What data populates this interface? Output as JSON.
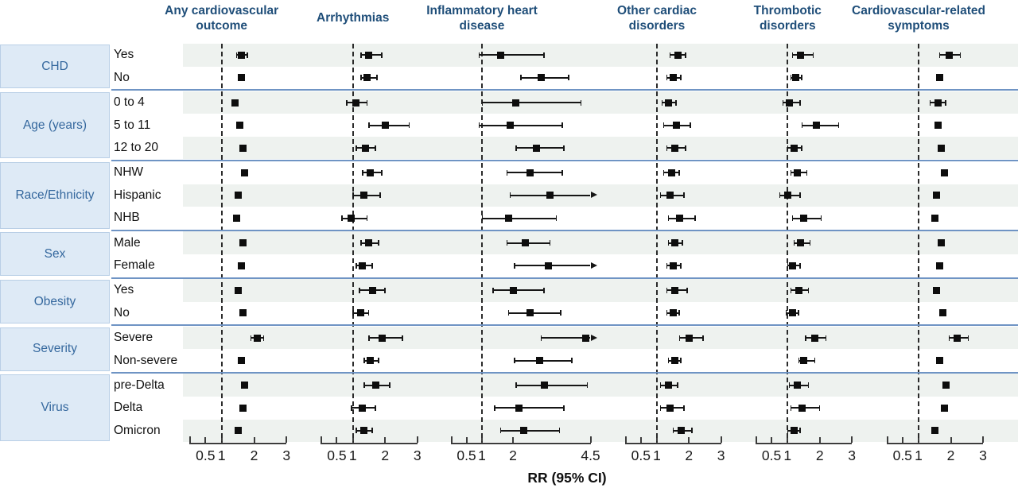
{
  "chart_data": {
    "type": "forest",
    "xlabel": "RR (95% CI)",
    "note": "Forest plot of risk ratios (RR, 95% CI); dashed reference line at RR = 1; estimates are [rr, lower, upper, optional '>' = CI clipped with right arrow]. Estimate order per row matches columns order.",
    "columns": [
      {
        "label": "Any cardiovascular outcome",
        "ticks": [
          0.5,
          1,
          2,
          3
        ],
        "tick_labels": [
          "0.5",
          "1",
          "2",
          "3"
        ]
      },
      {
        "label": "Arrhythmias",
        "ticks": [
          0.5,
          1,
          2,
          3
        ],
        "tick_labels": [
          "0.5",
          "1",
          "2",
          "3"
        ]
      },
      {
        "label": "Inflammatory heart disease",
        "ticks": [
          0.5,
          1,
          2,
          4.5
        ],
        "tick_labels": [
          "0.5",
          "1",
          "2",
          "4.5"
        ]
      },
      {
        "label": "Other cardiac disorders",
        "ticks": [
          0.5,
          1,
          2,
          3
        ],
        "tick_labels": [
          "0.5",
          "1",
          "2",
          "3"
        ]
      },
      {
        "label": "Thrombotic disorders",
        "ticks": [
          0.5,
          1,
          2,
          3
        ],
        "tick_labels": [
          "0.5",
          "1",
          "2",
          "3"
        ]
      },
      {
        "label": "Cardiovascular-related symptoms",
        "ticks": [
          0.5,
          1,
          2,
          3
        ],
        "tick_labels": [
          "0.5",
          "1",
          "2",
          "3"
        ]
      }
    ],
    "groups": [
      {
        "label": "CHD",
        "rows": [
          {
            "label": "Yes",
            "estimates": [
              [
                1.6,
                1.45,
                1.8
              ],
              [
                1.5,
                1.25,
                1.9
              ],
              [
                1.6,
                0.9,
                3.0
              ],
              [
                1.65,
                1.4,
                1.9
              ],
              [
                1.4,
                1.15,
                1.8
              ],
              [
                1.95,
                1.65,
                2.3
              ]
            ]
          },
          {
            "label": "No",
            "estimates": [
              [
                1.6,
                1.5,
                1.7
              ],
              [
                1.45,
                1.25,
                1.75
              ],
              [
                2.9,
                2.25,
                3.8
              ],
              [
                1.5,
                1.3,
                1.75
              ],
              [
                1.25,
                1.1,
                1.45
              ],
              [
                1.65,
                1.6,
                1.75
              ]
            ]
          }
        ]
      },
      {
        "label": "Age (years)",
        "rows": [
          {
            "label": "0  to 4",
            "estimates": [
              [
                1.4,
                1.25,
                1.5
              ],
              [
                1.1,
                0.8,
                1.45
              ],
              [
                2.1,
                1.0,
                4.2
              ],
              [
                1.35,
                1.15,
                1.6
              ],
              [
                1.05,
                0.85,
                1.4
              ],
              [
                1.6,
                1.35,
                1.85
              ]
            ]
          },
          {
            "label": "5 to 11",
            "estimates": [
              [
                1.55,
                1.5,
                1.65
              ],
              [
                2.0,
                1.5,
                2.75
              ],
              [
                1.9,
                0.9,
                3.6
              ],
              [
                1.6,
                1.2,
                2.05
              ],
              [
                1.9,
                1.45,
                2.6
              ],
              [
                1.6,
                1.5,
                1.7
              ]
            ]
          },
          {
            "label": "12 to 20",
            "estimates": [
              [
                1.65,
                1.55,
                1.7
              ],
              [
                1.4,
                1.1,
                1.7
              ],
              [
                2.75,
                2.1,
                3.65
              ],
              [
                1.55,
                1.3,
                1.9
              ],
              [
                1.2,
                1.0,
                1.45
              ],
              [
                1.7,
                1.6,
                1.8
              ]
            ]
          }
        ]
      },
      {
        "label": "Race/Ethnicity",
        "rows": [
          {
            "label": "NHW",
            "estimates": [
              [
                1.7,
                1.6,
                1.75
              ],
              [
                1.55,
                1.3,
                1.9
              ],
              [
                2.55,
                1.8,
                3.6
              ],
              [
                1.45,
                1.2,
                1.7
              ],
              [
                1.3,
                1.1,
                1.6
              ],
              [
                1.8,
                1.7,
                1.9
              ]
            ]
          },
          {
            "label": "Hispanic",
            "estimates": [
              [
                1.5,
                1.4,
                1.6
              ],
              [
                1.35,
                1.0,
                1.85
              ],
              [
                3.2,
                1.9,
                4.5,
                ">"
              ],
              [
                1.4,
                1.1,
                1.85
              ],
              [
                1.0,
                0.75,
                1.4
              ],
              [
                1.55,
                1.45,
                1.65
              ]
            ]
          },
          {
            "label": "NHB",
            "estimates": [
              [
                1.45,
                1.35,
                1.55
              ],
              [
                0.95,
                0.65,
                1.45
              ],
              [
                1.85,
                1.0,
                3.4
              ],
              [
                1.7,
                1.35,
                2.2
              ],
              [
                1.5,
                1.15,
                2.05
              ],
              [
                1.5,
                1.4,
                1.6
              ]
            ]
          }
        ]
      },
      {
        "label": "Sex",
        "rows": [
          {
            "label": "Male",
            "estimates": [
              [
                1.65,
                1.55,
                1.7
              ],
              [
                1.5,
                1.25,
                1.8
              ],
              [
                2.4,
                1.8,
                3.2
              ],
              [
                1.55,
                1.35,
                1.8
              ],
              [
                1.4,
                1.2,
                1.7
              ],
              [
                1.7,
                1.6,
                1.8
              ]
            ]
          },
          {
            "label": "Female",
            "estimates": [
              [
                1.6,
                1.5,
                1.65
              ],
              [
                1.3,
                1.1,
                1.6
              ],
              [
                3.15,
                2.05,
                4.5,
                ">"
              ],
              [
                1.5,
                1.3,
                1.75
              ],
              [
                1.15,
                1.0,
                1.4
              ],
              [
                1.65,
                1.55,
                1.7
              ]
            ]
          }
        ]
      },
      {
        "label": "Obesity",
        "rows": [
          {
            "label": "Yes",
            "estimates": [
              [
                1.5,
                1.4,
                1.6
              ],
              [
                1.6,
                1.2,
                2.0
              ],
              [
                2.0,
                1.35,
                3.0
              ],
              [
                1.55,
                1.3,
                1.95
              ],
              [
                1.35,
                1.1,
                1.65
              ],
              [
                1.55,
                1.5,
                1.65
              ]
            ]
          },
          {
            "label": "No",
            "estimates": [
              [
                1.65,
                1.55,
                1.7
              ],
              [
                1.25,
                1.0,
                1.5
              ],
              [
                2.55,
                1.85,
                3.55
              ],
              [
                1.5,
                1.3,
                1.7
              ],
              [
                1.15,
                0.95,
                1.35
              ],
              [
                1.75,
                1.65,
                1.8
              ]
            ]
          }
        ]
      },
      {
        "label": "Severity",
        "rows": [
          {
            "label": "Severe",
            "estimates": [
              [
                2.1,
                1.9,
                2.3
              ],
              [
                1.9,
                1.5,
                2.55
              ],
              [
                4.35,
                2.9,
                4.5,
                ">"
              ],
              [
                2.0,
                1.7,
                2.45
              ],
              [
                1.85,
                1.55,
                2.2
              ],
              [
                2.2,
                1.95,
                2.55
              ]
            ]
          },
          {
            "label": "Non-severe",
            "estimates": [
              [
                1.6,
                1.5,
                1.65
              ],
              [
                1.55,
                1.35,
                1.8
              ],
              [
                2.85,
                2.05,
                3.9
              ],
              [
                1.55,
                1.35,
                1.75
              ],
              [
                1.5,
                1.35,
                1.85
              ],
              [
                1.65,
                1.6,
                1.7
              ]
            ]
          }
        ]
      },
      {
        "label": "Virus",
        "rows": [
          {
            "label": "pre-Delta",
            "estimates": [
              [
                1.7,
                1.6,
                1.8
              ],
              [
                1.7,
                1.35,
                2.15
              ],
              [
                3.0,
                2.1,
                4.4
              ],
              [
                1.35,
                1.1,
                1.65
              ],
              [
                1.3,
                1.05,
                1.65
              ],
              [
                1.85,
                1.75,
                1.95
              ]
            ]
          },
          {
            "label": "Delta",
            "estimates": [
              [
                1.65,
                1.6,
                1.75
              ],
              [
                1.3,
                0.95,
                1.7
              ],
              [
                2.2,
                1.4,
                3.65
              ],
              [
                1.4,
                1.1,
                1.85
              ],
              [
                1.45,
                1.1,
                2.0
              ],
              [
                1.8,
                1.7,
                1.85
              ]
            ]
          },
          {
            "label": "Omicron",
            "estimates": [
              [
                1.5,
                1.45,
                1.6
              ],
              [
                1.35,
                1.1,
                1.6
              ],
              [
                2.35,
                1.6,
                3.5
              ],
              [
                1.75,
                1.5,
                2.1
              ],
              [
                1.2,
                1.0,
                1.4
              ],
              [
                1.5,
                1.45,
                1.6
              ]
            ]
          }
        ]
      }
    ],
    "reference_line": 1,
    "legend_position": "none",
    "grid": false,
    "colors": {
      "header_text": "#1F4E79",
      "group_text": "#35689E",
      "group_cell_fill": "#DEEAF6",
      "group_cell_border": "#B9CFE6",
      "separator_line": "#6F94C4",
      "row_stripe": "#EEF2EF",
      "marker": "#0d0d0d"
    }
  }
}
